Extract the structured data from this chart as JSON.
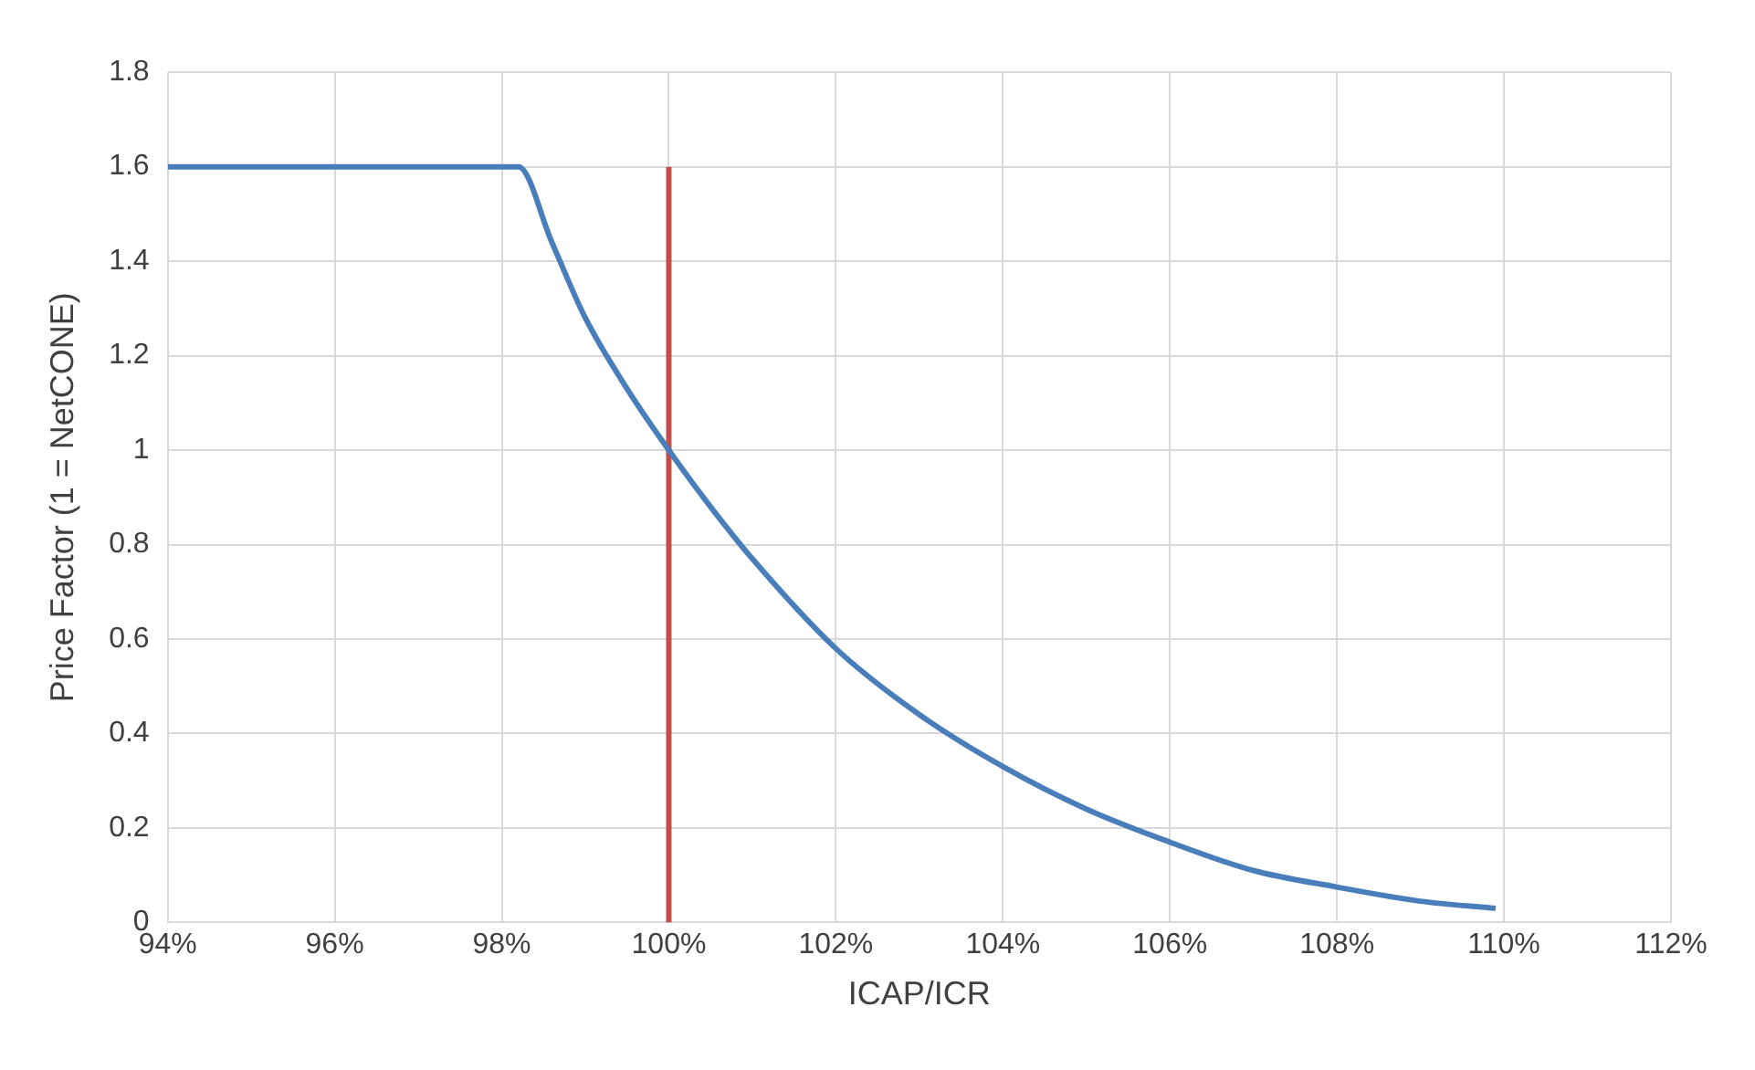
{
  "chart_data": {
    "type": "line",
    "xlabel": "ICAP/ICR",
    "ylabel": "Price Factor (1 = NetCONE)",
    "xlim": [
      94,
      112
    ],
    "xticks": [
      {
        "value": 94,
        "label": "94%"
      },
      {
        "value": 96,
        "label": "96%"
      },
      {
        "value": 98,
        "label": "98%"
      },
      {
        "value": 100,
        "label": "100%"
      },
      {
        "value": 102,
        "label": "102%"
      },
      {
        "value": 104,
        "label": "104%"
      },
      {
        "value": 106,
        "label": "106%"
      },
      {
        "value": 108,
        "label": "108%"
      },
      {
        "value": 110,
        "label": "110%"
      },
      {
        "value": 112,
        "label": "112%"
      }
    ],
    "ylim": [
      0,
      1.8
    ],
    "yticks": [
      0,
      0.2,
      0.4,
      0.6,
      0.8,
      1,
      1.2,
      1.4,
      1.6,
      1.8
    ],
    "grid": true,
    "legend": false,
    "marker": "none",
    "line_style": "solid",
    "series": [
      {
        "color": "#4a7ebb",
        "x": [
          94,
          98.2,
          98.6,
          99,
          99.5,
          100,
          100.5,
          101,
          102,
          103,
          104,
          105,
          106,
          107,
          108,
          109,
          109.9
        ],
        "values": [
          1.6,
          1.6,
          1.44,
          1.28,
          1.13,
          1,
          0.88,
          0.77,
          0.58,
          0.44,
          0.33,
          0.24,
          0.17,
          0.11,
          0.075,
          0.045,
          0.03
        ]
      },
      {
        "color": "#c0504d",
        "x": [
          100,
          100
        ],
        "values": [
          0,
          1.6
        ]
      }
    ]
  }
}
